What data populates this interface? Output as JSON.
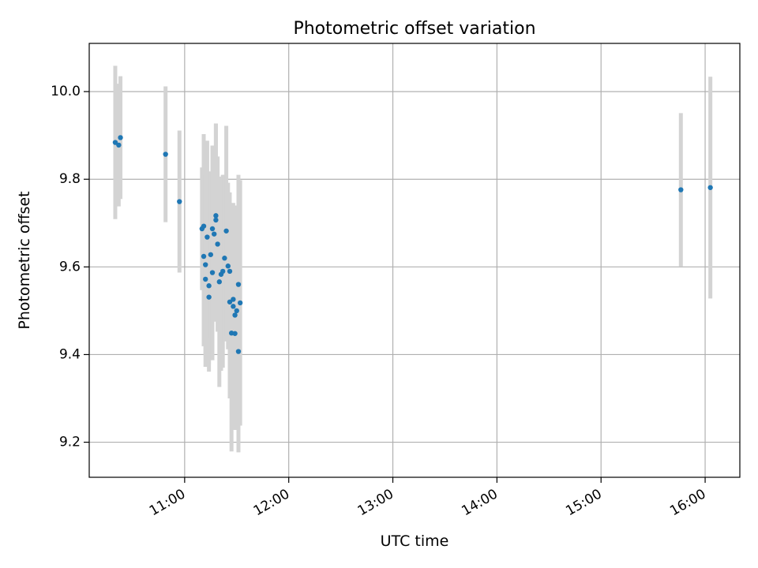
{
  "chart_data": {
    "type": "scatter",
    "title": "Photometric offset variation",
    "xlabel": "UTC time",
    "ylabel": "Photometric offset",
    "x_ticks": [
      "11:00",
      "12:00",
      "13:00",
      "14:00",
      "15:00",
      "16:00"
    ],
    "y_ticks": [
      "9.2",
      "9.4",
      "9.6",
      "9.8",
      "10.0"
    ],
    "xlim": [
      "10:05",
      "16:20"
    ],
    "ylim": [
      9.12,
      10.11
    ],
    "grid": true,
    "colors": {
      "points": "#1f77b4",
      "errorbars": "#d3d3d3",
      "grid": "#b0b0b0"
    },
    "series": [
      {
        "points": [
          {
            "x": "10:20",
            "y": 9.884,
            "err": 0.175
          },
          {
            "x": "10:22",
            "y": 9.878,
            "err": 0.14
          },
          {
            "x": "10:23",
            "y": 9.895,
            "err": 0.14
          },
          {
            "x": "10:49",
            "y": 9.857,
            "err": 0.155
          },
          {
            "x": "10:57",
            "y": 9.749,
            "err": 0.162
          },
          {
            "x": "11:10",
            "y": 9.687,
            "err": 0.14
          },
          {
            "x": "11:11",
            "y": 9.624,
            "err": 0.205
          },
          {
            "x": "11:11",
            "y": 9.693,
            "err": 0.21
          },
          {
            "x": "11:12",
            "y": 9.605,
            "err": 0.205
          },
          {
            "x": "11:12",
            "y": 9.572,
            "err": 0.2
          },
          {
            "x": "11:13",
            "y": 9.668,
            "err": 0.22
          },
          {
            "x": "11:14",
            "y": 9.531,
            "err": 0.17
          },
          {
            "x": "11:14",
            "y": 9.557,
            "err": 0.18
          },
          {
            "x": "11:15",
            "y": 9.628,
            "err": 0.19
          },
          {
            "x": "11:16",
            "y": 9.587,
            "err": 0.2
          },
          {
            "x": "11:16",
            "y": 9.687,
            "err": 0.19
          },
          {
            "x": "11:17",
            "y": 9.675,
            "err": 0.2
          },
          {
            "x": "11:18",
            "y": 9.717,
            "err": 0.21
          },
          {
            "x": "11:18",
            "y": 9.707,
            "err": 0.22
          },
          {
            "x": "11:19",
            "y": 9.652,
            "err": 0.2
          },
          {
            "x": "11:20",
            "y": 9.566,
            "err": 0.24
          },
          {
            "x": "11:21",
            "y": 9.583,
            "err": 0.22
          },
          {
            "x": "11:22",
            "y": 9.59,
            "err": 0.22
          },
          {
            "x": "11:23",
            "y": 9.62,
            "err": 0.19
          },
          {
            "x": "11:24",
            "y": 9.682,
            "err": 0.24
          },
          {
            "x": "11:25",
            "y": 9.602,
            "err": 0.19
          },
          {
            "x": "11:26",
            "y": 9.59,
            "err": 0.18
          },
          {
            "x": "11:26",
            "y": 9.52,
            "err": 0.22
          },
          {
            "x": "11:27",
            "y": 9.449,
            "err": 0.27
          },
          {
            "x": "11:28",
            "y": 9.526,
            "err": 0.22
          },
          {
            "x": "11:28",
            "y": 9.51,
            "err": 0.22
          },
          {
            "x": "11:29",
            "y": 9.49,
            "err": 0.22
          },
          {
            "x": "11:29",
            "y": 9.448,
            "err": 0.22
          },
          {
            "x": "11:30",
            "y": 9.5,
            "err": 0.24
          },
          {
            "x": "11:31",
            "y": 9.56,
            "err": 0.25
          },
          {
            "x": "11:31",
            "y": 9.407,
            "err": 0.23
          },
          {
            "x": "11:32",
            "y": 9.518,
            "err": 0.28
          },
          {
            "x": "15:46",
            "y": 9.776,
            "err": 0.175
          },
          {
            "x": "16:03",
            "y": 9.781,
            "err": 0.253
          }
        ]
      }
    ]
  }
}
